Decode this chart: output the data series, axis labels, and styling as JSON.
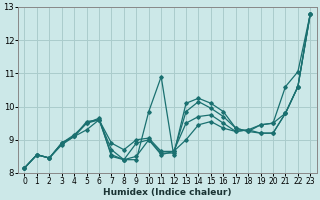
{
  "xlabel": "Humidex (Indice chaleur)",
  "bg_color": "#cce8e8",
  "grid_color": "#aacccc",
  "line_color": "#1a7070",
  "xlim": [
    -0.5,
    23.5
  ],
  "ylim": [
    8,
    13
  ],
  "yticks": [
    8,
    9,
    10,
    11,
    12,
    13
  ],
  "xticks": [
    0,
    1,
    2,
    3,
    4,
    5,
    6,
    7,
    8,
    9,
    10,
    11,
    12,
    13,
    14,
    15,
    16,
    17,
    18,
    19,
    20,
    21,
    22,
    23
  ],
  "series": [
    [
      8.15,
      8.55,
      8.45,
      8.9,
      9.1,
      9.5,
      9.6,
      8.55,
      8.4,
      8.4,
      9.85,
      10.9,
      8.55,
      10.1,
      10.25,
      10.1,
      9.85,
      9.35,
      9.25,
      9.45,
      9.5,
      10.6,
      11.05,
      12.8
    ],
    [
      8.15,
      8.55,
      8.45,
      8.85,
      9.1,
      9.55,
      9.6,
      8.9,
      8.7,
      9.0,
      9.05,
      8.65,
      8.65,
      9.5,
      9.7,
      9.75,
      9.5,
      9.25,
      9.3,
      9.45,
      9.5,
      9.8,
      10.6,
      12.8
    ],
    [
      8.15,
      8.55,
      8.45,
      8.9,
      9.1,
      9.3,
      9.6,
      8.7,
      8.4,
      8.5,
      9.0,
      8.6,
      8.6,
      9.85,
      10.15,
      9.95,
      9.7,
      9.35,
      9.25,
      9.2,
      9.2,
      9.8,
      10.6,
      12.8
    ],
    [
      8.15,
      8.55,
      8.45,
      8.9,
      9.15,
      9.5,
      9.65,
      8.5,
      8.4,
      8.9,
      9.0,
      8.55,
      8.65,
      9.0,
      9.45,
      9.55,
      9.35,
      9.25,
      9.3,
      9.2,
      9.2,
      9.8,
      10.6,
      12.8
    ]
  ]
}
